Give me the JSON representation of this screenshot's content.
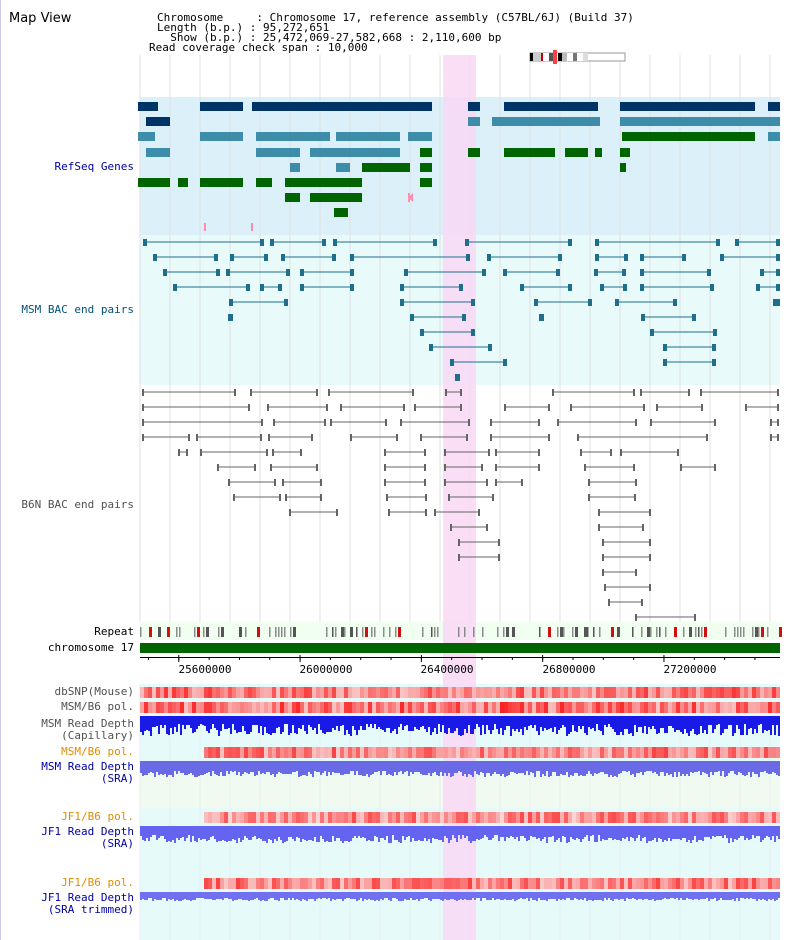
{
  "title": "Map View",
  "info": {
    "chromosome_key": "Chromosome    ",
    "chromosome_val": "Chromosome 17, reference assembly (C57BL/6J) (Build 37)",
    "length_key": "Length (b.p.)",
    "length_val": "95,272,651",
    "show_key": "  Show (b.p.)",
    "show_val": "25,472,069-27,582,668 : 2,110,600 bp",
    "coverage_key": "Read coverage check span",
    "coverage_val": "10,000"
  },
  "tracks": {
    "refseq": "RefSeq Genes",
    "msm_bac": "MSM BAC end pairs",
    "b6n_bac": "B6N BAC end pairs",
    "repeat": "Repeat",
    "chromosome": "chromosome 17",
    "dbsnp": "dbSNP(Mouse)",
    "msm_b6_pol_1": "MSM/B6 pol.",
    "msm_read_depth_cap_1": "MSM Read Depth",
    "msm_read_depth_cap_2": "(Capillary)",
    "msm_b6_pol_2": "MSM/B6 pol.",
    "msm_read_depth_sra_1": "MSM Read Depth",
    "msm_read_depth_sra_2": "(SRA)",
    "jf1_b6_pol_1": "JF1/B6 pol.",
    "jf1_read_depth_1": "JF1 Read Depth",
    "jf1_read_depth_2": "(SRA)",
    "jf1_b6_pol_2": "JF1/B6 pol.",
    "jf1_read_depth_trim_1": "JF1 Read Depth",
    "jf1_read_depth_trim_2": "(SRA trimmed)"
  },
  "axis_ticks": [
    "25600000",
    "26000000",
    "26400000",
    "26800000",
    "27200000"
  ],
  "axis_ticks_bp": [
    25600000,
    26000000,
    26400000,
    26800000,
    27200000
  ],
  "region": {
    "start_bp": 25472069,
    "end_bp": 27582668,
    "highlight_start_bp": 26450000,
    "highlight_end_bp": 26560000
  },
  "colors": {
    "refseq_bg": "#dcf0fa",
    "msm_bg": "#e8fafa",
    "highlight": "#f8d8f4",
    "gene_dark_blue": "#003366",
    "gene_mid_blue": "#3c8caa",
    "gene_green": "#006400",
    "msm_pair": "#1e6e8c",
    "b6n_pair": "#646464",
    "chromosome_bar": "#006400",
    "label_blue": "#0000a0",
    "label_orange": "#e08c00",
    "label_teal": "#005078",
    "label_gray": "#505050"
  }
}
